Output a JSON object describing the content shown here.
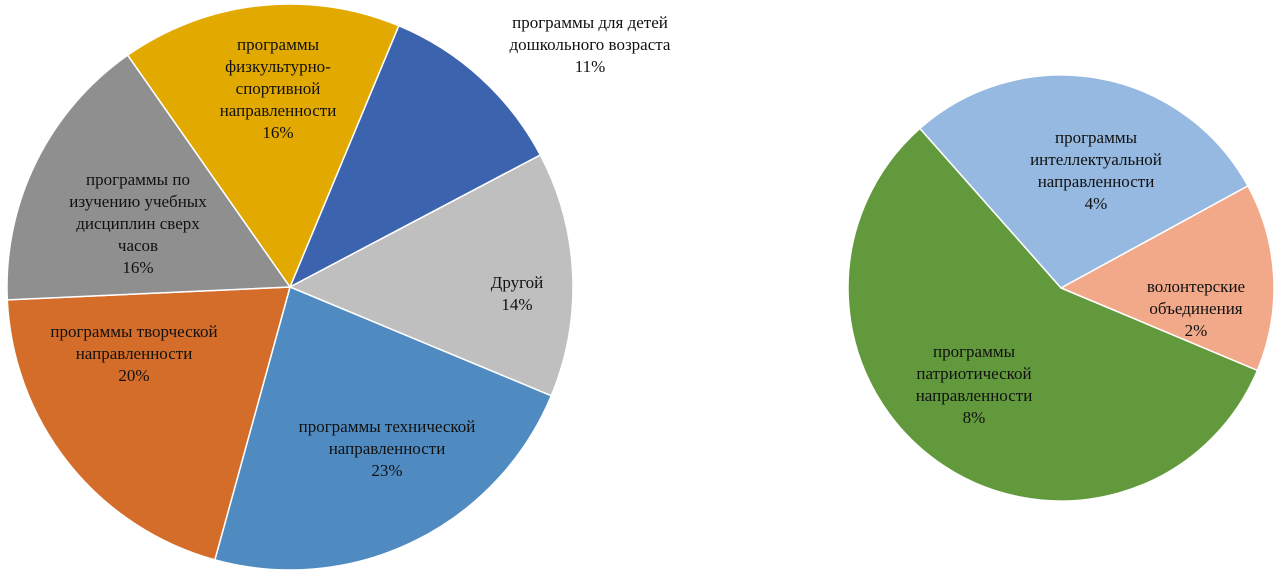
{
  "chart_data": [
    {
      "type": "pie",
      "categories": [
        "программы для детей дошкольного возраста",
        "Другой",
        "программы технической направленности",
        "программы творческой направленности",
        "программы по изучению учебных дисциплин сверх часов",
        "программы физкультурно-спортивной направленности"
      ],
      "values": [
        11,
        14,
        23,
        20,
        16,
        16
      ],
      "value_labels": [
        "11%",
        "14%",
        "23%",
        "20%",
        "16%",
        "16%"
      ],
      "colors": [
        "#3c64ae",
        "#bfbfbf",
        "#4f8bc0",
        "#d46d29",
        "#8f8f8f",
        "#e2aa00"
      ]
    },
    {
      "type": "pie",
      "categories": [
        "программы интеллектуальной направленности",
        "волонтерские объединения",
        "программы патриотической направленности"
      ],
      "values": [
        4,
        2,
        8
      ],
      "value_labels": [
        "4%",
        "2%",
        "8%"
      ],
      "colors": [
        "#95b9e0",
        "#f2a98a",
        "#62993d"
      ]
    }
  ]
}
